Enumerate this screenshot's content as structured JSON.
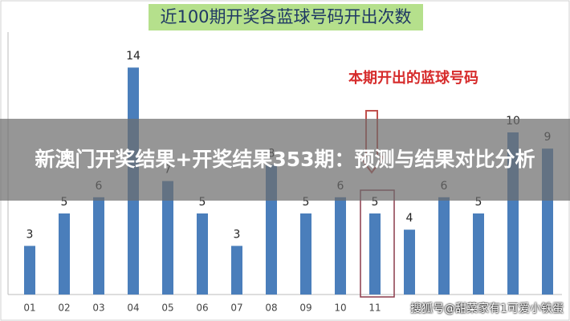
{
  "chart_data": {
    "type": "bar",
    "title": "近100期开奖各蓝球号码开出次数",
    "annotation": "本期开出的蓝球号码",
    "categories": [
      "01",
      "02",
      "03",
      "04",
      "05",
      "06",
      "07",
      "08",
      "09",
      "10",
      "11",
      null,
      null,
      null,
      null,
      null
    ],
    "values": [
      3,
      5,
      6,
      14,
      7,
      5,
      3,
      8,
      5,
      6,
      5,
      4,
      6,
      5,
      10,
      9
    ],
    "color": "#4a7ebb",
    "highlight_category": "11",
    "ylim": [
      0,
      16
    ]
  },
  "overlay": {
    "headline": "新澳门开奖结果+开奖结果353期：预测与结果对比分析",
    "watermark": "搜狐号@甜菜家有1可爱小铁蛋"
  }
}
